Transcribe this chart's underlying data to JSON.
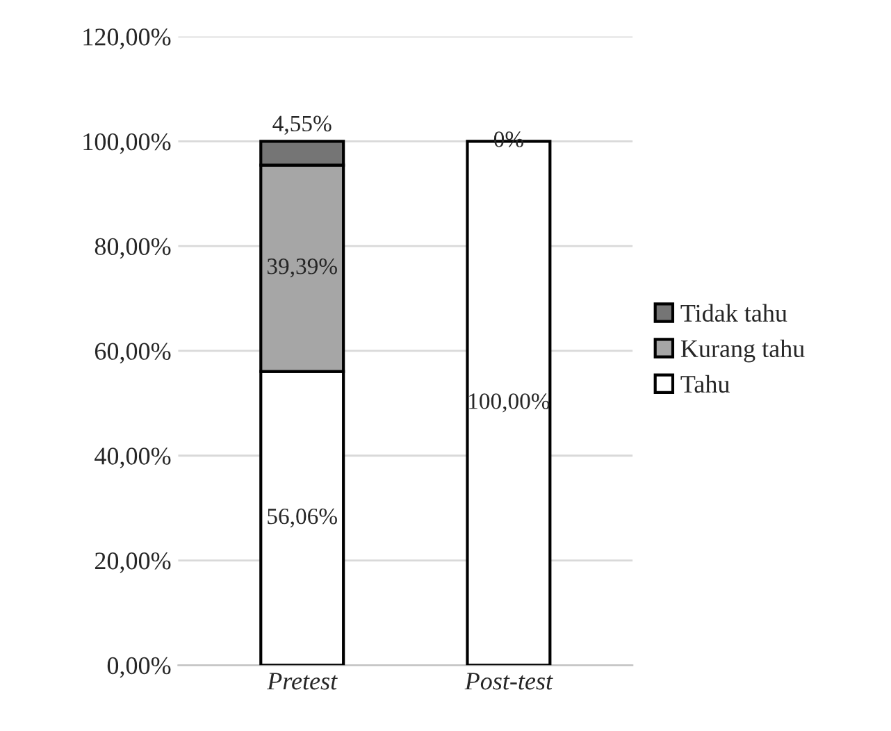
{
  "chart_data": {
    "type": "bar",
    "stacked": true,
    "categories": [
      "Pretest",
      "Post-test"
    ],
    "series": [
      {
        "name": "Tahu",
        "color": "#ffffff",
        "values": [
          56.06,
          100
        ],
        "value_labels": [
          "56,06%",
          "100,00%"
        ]
      },
      {
        "name": "Kurang tahu",
        "color": "#a6a6a6",
        "values": [
          39.39,
          0
        ],
        "value_labels": [
          "39,39%",
          null
        ]
      },
      {
        "name": "Tidak tahu",
        "color": "#757575",
        "values": [
          4.55,
          0
        ],
        "value_labels": [
          "4,55%",
          "0%"
        ]
      }
    ],
    "ylim": [
      0,
      120
    ],
    "yticks": [
      {
        "value": 0,
        "label": "0,00%"
      },
      {
        "value": 20,
        "label": "20,00%"
      },
      {
        "value": 40,
        "label": "40,00%"
      },
      {
        "value": 60,
        "label": "60,00%"
      },
      {
        "value": 80,
        "label": "80,00%"
      },
      {
        "value": 100,
        "label": "100,00%"
      },
      {
        "value": 120,
        "label": "120,00%"
      }
    ],
    "grid": "y",
    "legend": "right"
  }
}
